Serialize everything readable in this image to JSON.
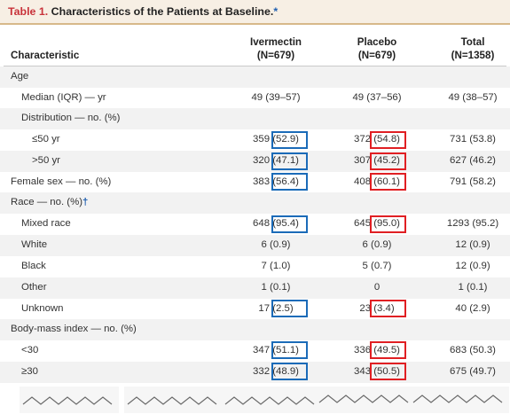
{
  "table": {
    "title_label": "Table 1.",
    "title_text": "Characteristics of the Patients at Baseline.",
    "title_mark": "*",
    "headers": {
      "characteristic": "Characteristic",
      "ivermectin": "Ivermectin",
      "ivermectin_n": "(N=679)",
      "placebo": "Placebo",
      "placebo_n": "(N=679)",
      "total": "Total",
      "total_n": "(N=1358)"
    },
    "rows": [
      {
        "label": "Age",
        "ivermectin": "",
        "placebo": "",
        "total": ""
      },
      {
        "label": "Median (IQR) — yr",
        "ivermectin": "49 (39–57)",
        "placebo": "49 (37–56)",
        "total": "49 (38–57)"
      },
      {
        "label": "Distribution — no. (%)",
        "ivermectin": "",
        "placebo": "",
        "total": ""
      },
      {
        "label": "≤50 yr",
        "ivermectin": "359 (52.9)",
        "placebo": "372 (54.8)",
        "total": "731 (53.8)"
      },
      {
        "label": ">50 yr",
        "ivermectin": "320 (47.1)",
        "placebo": "307 (45.2)",
        "total": "627 (46.2)"
      },
      {
        "label": "Female sex — no. (%)",
        "ivermectin": "383 (56.4)",
        "placebo": "408 (60.1)",
        "total": "791 (58.2)"
      },
      {
        "label": "Race — no. (%)",
        "label_mark": "†",
        "ivermectin": "",
        "placebo": "",
        "total": ""
      },
      {
        "label": "Mixed race",
        "ivermectin": "648 (95.4)",
        "placebo": "645 (95.0)",
        "total": "1293 (95.2)"
      },
      {
        "label": "White",
        "ivermectin": "6 (0.9)",
        "placebo": "6 (0.9)",
        "total": "12 (0.9)"
      },
      {
        "label": "Black",
        "ivermectin": "7 (1.0)",
        "placebo": "5 (0.7)",
        "total": "12 (0.9)"
      },
      {
        "label": "Other",
        "ivermectin": "1 (0.1)",
        "placebo": "0",
        "total": "1 (0.1)"
      },
      {
        "label": "Unknown",
        "ivermectin": "17 (2.5)",
        "placebo": "23 (3.4)",
        "total": "40 (2.9)"
      },
      {
        "label": "Body-mass index — no. (%)",
        "ivermectin": "",
        "placebo": "",
        "total": ""
      },
      {
        "label": "<30",
        "ivermectin": "347 (51.1)",
        "placebo": "336 (49.5)",
        "total": "683 (50.3)"
      },
      {
        "label": "≥30",
        "ivermectin": "332 (48.9)",
        "placebo": "343 (50.5)",
        "total": "675 (49.7)"
      }
    ]
  },
  "colors": {
    "title_accent": "#c8323a",
    "highlight_ivermectin": "#1b6bb8",
    "highlight_placebo": "#e01f23",
    "row_shade": "#f2f2f2"
  },
  "icons": [
    "zigzag-wave-icon"
  ]
}
